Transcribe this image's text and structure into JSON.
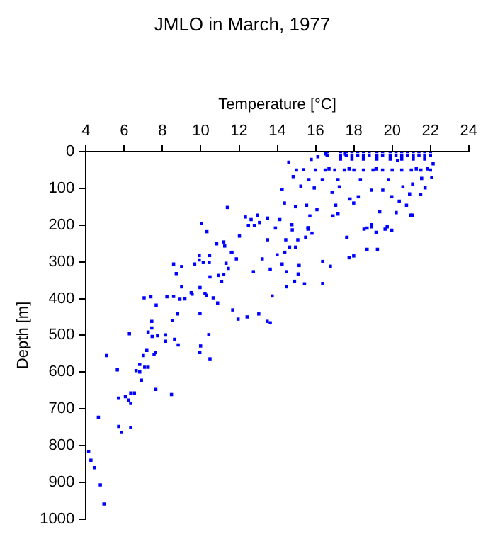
{
  "chart_data": {
    "type": "scatter",
    "title": "JMLO in March, 1977",
    "xlabel": "Temperature [°C]",
    "ylabel": "Depth [m]",
    "x": [
      4.65,
      5.07,
      5.64,
      5.7,
      5.71,
      5.85,
      6.06,
      6.22,
      6.34,
      6.34,
      6.53,
      6.34,
      6.27,
      6.62,
      6.81,
      6.81,
      6.9,
      7.07,
      7.25,
      7.18,
      7.0,
      7.04,
      7.39,
      7.25,
      7.44,
      7.44,
      7.46,
      7.56,
      7.63,
      7.67,
      7.74,
      7.65,
      8.16,
      8.16,
      8.47,
      8.23,
      8.58,
      8.58,
      8.72,
      8.51,
      8.63,
      8.82,
      8.79,
      8.91,
      9.0,
      9.17,
      9.0,
      9.5,
      9.55,
      9.68,
      9.92,
      9.92,
      9.96,
      9.96,
      9.99,
      9.95,
      10.13,
      10.22,
      10.29,
      10.44,
      10.46,
      10.48,
      10.42,
      10.48,
      10.65,
      10.88,
      10.93,
      11.09,
      11.2,
      11.25,
      11.32,
      11.44,
      11.63,
      11.86,
      11.67,
      11.95,
      12.42,
      12.75,
      13.03,
      13.21,
      13.47,
      13.63,
      13.63,
      13.73,
      13.99,
      14.25,
      14.39,
      14.48,
      14.48,
      14.64,
      14.95,
      15.14,
      15.09,
      14.9,
      15.42,
      4.14,
      4.26,
      4.44,
      4.75,
      4.94,
      10.04,
      10.32,
      10.83,
      11.2,
      11.39,
      11.6,
      12.02,
      12.33,
      12.49,
      12.63,
      12.8,
      12.96,
      13.07,
      13.49,
      13.49,
      13.9,
      14.13,
      14.25,
      14.37,
      14.44,
      14.76,
      14.78,
      14.6,
      14.83,
      14.95,
      15.07,
      15.23,
      15.37,
      15.53,
      15.6,
      15.65,
      15.7,
      15.77,
      15.93,
      16.07,
      16.12,
      16.35,
      16.54,
      16.7,
      16.86,
      16.91,
      17.05,
      17.17,
      17.17,
      17.24,
      17.63,
      17.52,
      17.75,
      17.8,
      17.99,
      18.23,
      18.34,
      18.69,
      18.93,
      18.93,
      19.16,
      19.35,
      19.51,
      19.63,
      19.81,
      19.98,
      20.21,
      20.28,
      20.37,
      20.56,
      20.75,
      20.91,
      21.07,
      21.04,
      21.26,
      21.49,
      21.54,
      21.72,
      21.84,
      22.07,
      22.14,
      19.23,
      18.69,
      17.99,
      17.75,
      16.77,
      16.37,
      16.37,
      19.98,
      19.74,
      18.93,
      19.16,
      18.53,
      17.64,
      20.98,
      15.81,
      15.48,
      15.6,
      16.6,
      17.3,
      17.6,
      17.9,
      18.2,
      18.5,
      18.8,
      19.2,
      19.5,
      19.9,
      20.2,
      20.5,
      20.8,
      21.1,
      21.4,
      21.7,
      22.0,
      16.6,
      17.3,
      17.6,
      17.9,
      18.2,
      18.5,
      18.8,
      19.2,
      19.5,
      19.9,
      20.2,
      20.5,
      20.8,
      21.1,
      21.4,
      21.7,
      22.0,
      17.3,
      17.9,
      18.5,
      19.2,
      19.9,
      20.5,
      21.1,
      21.7,
      15.0,
      16.0,
      16.5,
      17.0,
      17.5,
      18.0,
      18.5,
      19.0,
      19.5,
      20.0,
      20.5,
      21.0,
      21.5,
      22.0
    ],
    "series": [
      {
        "color": "#0000ff",
        "values": [
          723,
          555,
          594,
          671,
          748,
          764,
          667,
          676,
          685,
          657,
          657,
          751,
          496,
          596,
          600,
          579,
          622,
          587,
          587,
          541,
          555,
          398,
          395,
          491,
          462,
          480,
          503,
          552,
          547,
          418,
          501,
          647,
          499,
          516,
          661,
          395,
          306,
          394,
          332,
          460,
          511,
          526,
          442,
          402,
          313,
          401,
          368,
          384,
          388,
          306,
          283,
          295,
          370,
          441,
          529,
          547,
          302,
          386,
          391,
          302,
          283,
          341,
          498,
          564,
          398,
          412,
          337,
          354,
          334,
          257,
          304,
          318,
          274,
          292,
          431,
          456,
          450,
          327,
          442,
          292,
          462,
          466,
          320,
          393,
          281,
          306,
          274,
          327,
          368,
          260,
          260,
          310,
          333,
          353,
          360,
          816,
          840,
          860,
          907,
          959,
          196,
          218,
          251,
          246,
          152,
          275,
          230,
          178,
          201,
          185,
          201,
          173,
          193,
          181,
          240,
          208,
          185,
          103,
          140,
          240,
          199,
          213,
          29,
          68,
          150,
          240,
          94,
          49,
          146,
          211,
          76,
          175,
          21,
          99,
          158,
          14,
          76,
          6,
          47,
          111,
          175,
          146,
          170,
          76,
          96,
          234,
          6,
          47,
          129,
          140,
          123,
          76,
          208,
          205,
          105,
          47,
          164,
          105,
          211,
          76,
          123,
          166,
          24,
          135,
          96,
          146,
          115,
          88,
          173,
          47,
          117,
          73,
          99,
          47,
          70,
          33,
          266,
          266,
          284,
          289,
          312,
          299,
          359,
          214,
          205,
          199,
          220,
          211,
          233,
          173,
          222,
          233,
          207,
          0,
          0,
          0,
          0,
          0,
          0,
          0,
          0,
          0,
          0,
          0,
          0,
          0,
          0,
          0,
          0,
          0,
          10,
          10,
          10,
          10,
          10,
          10,
          10,
          10,
          10,
          10,
          10,
          10,
          10,
          10,
          10,
          10,
          10,
          20,
          20,
          20,
          20,
          20,
          20,
          20,
          20,
          50,
          50,
          50,
          50,
          50,
          50,
          50,
          50,
          50,
          50,
          50,
          50,
          50,
          50
        ]
      }
    ],
    "xlim": [
      4,
      24
    ],
    "xticks": [
      4,
      6,
      8,
      10,
      12,
      14,
      16,
      18,
      20,
      22,
      24
    ],
    "ylim": [
      1000,
      0
    ],
    "yticks": [
      0,
      100,
      200,
      300,
      400,
      500,
      600,
      700,
      800,
      900,
      1000
    ],
    "grid": false,
    "legend": false,
    "marker": "square"
  }
}
